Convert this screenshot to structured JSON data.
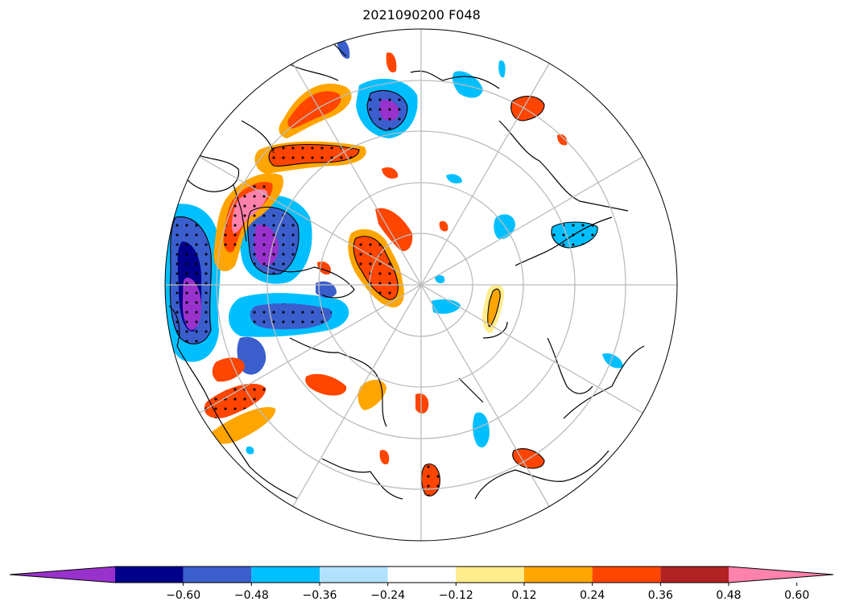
{
  "title": "2021090200 F048",
  "colorbar": {
    "colors": [
      "#9932cc",
      "#00008b",
      "#3a5fcd",
      "#00bfff",
      "#b0e2ff",
      "#ffffff",
      "#ffec8b",
      "#ffa500",
      "#ff4500",
      "#b22222",
      "#ff82ab"
    ],
    "ticks": [
      "−0.60",
      "−0.48",
      "−0.36",
      "−0.24",
      "−0.12",
      "0.12",
      "0.24",
      "0.36",
      "0.48",
      "0.60"
    ],
    "extend": "both"
  },
  "map": {
    "projection": "north-polar-stereographic",
    "graticule": true,
    "coastlines": true,
    "stippling": true
  }
}
